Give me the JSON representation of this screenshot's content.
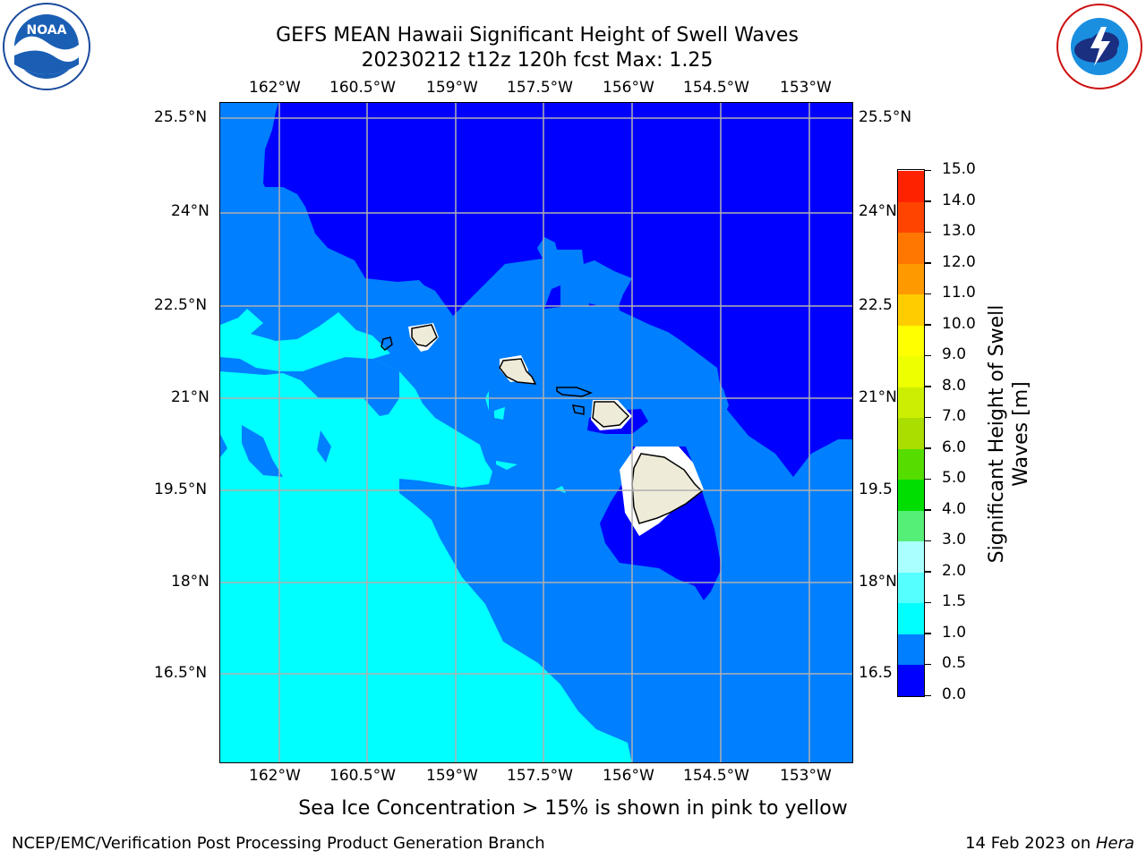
{
  "header": {
    "title_line1": "GEFS MEAN Hawaii Significant Height of Swell Waves",
    "title_line2": "20230212 t12z 120h fcst   Max: 1.25"
  },
  "logos": {
    "left": "noaa-logo",
    "left_text": "NOAA",
    "left_ring_text": "NATIONAL OCEANIC AND ATMOSPHERIC ADMINISTRATION · U.S. DEPARTMENT OF COMMERCE",
    "right": "national-weather-service-logo",
    "right_ring_text": "NATIONAL WEATHER SERVICE"
  },
  "map": {
    "lon_ticks": [
      "162°W",
      "160.5°W",
      "159°W",
      "157.5°W",
      "156°W",
      "154.5°W",
      "153°W"
    ],
    "lat_ticks": [
      "25.5°N",
      "24°N",
      "22.5°N",
      "21°N",
      "19.5°N",
      "18°N",
      "16.5°N"
    ],
    "lat_ticks_right": [
      "25.5°N",
      "24°N",
      "22.5",
      "21°N",
      "19.5",
      "18°N",
      "16.5"
    ],
    "colors": {
      "band_0_0_5": "#0000ff",
      "band_0_5_1_0": "#007fff",
      "band_1_0_1_5": "#00ffff",
      "land": "#efebd9",
      "grid": "#b0b0b0"
    }
  },
  "colorbar": {
    "label_line1": "Significant Height of Swell",
    "label_line2": "Waves [m]",
    "ticks": [
      "0.0",
      "0.5",
      "1.0",
      "1.5",
      "2.0",
      "3.0",
      "4.0",
      "5.0",
      "6.0",
      "7.0",
      "8.0",
      "9.0",
      "10.0",
      "11.0",
      "12.0",
      "13.0",
      "14.0",
      "15.0"
    ],
    "colors": [
      "#0000ff",
      "#007fff",
      "#00ffff",
      "#55ffff",
      "#aaffff",
      "#55ee77",
      "#00dd00",
      "#55dd00",
      "#aadd00",
      "#ccee00",
      "#eeff00",
      "#ffff00",
      "#ffcc00",
      "#ff9900",
      "#ff7700",
      "#ff4400",
      "#ff2200",
      "#ff0000"
    ]
  },
  "footer": {
    "caption": "Sea Ice Concentration > 15% is shown in pink to yellow",
    "left": "NCEP/EMC/Verification Post Processing Product Generation Branch",
    "date": "14 Feb 2023 on ",
    "machine": "Hera"
  }
}
